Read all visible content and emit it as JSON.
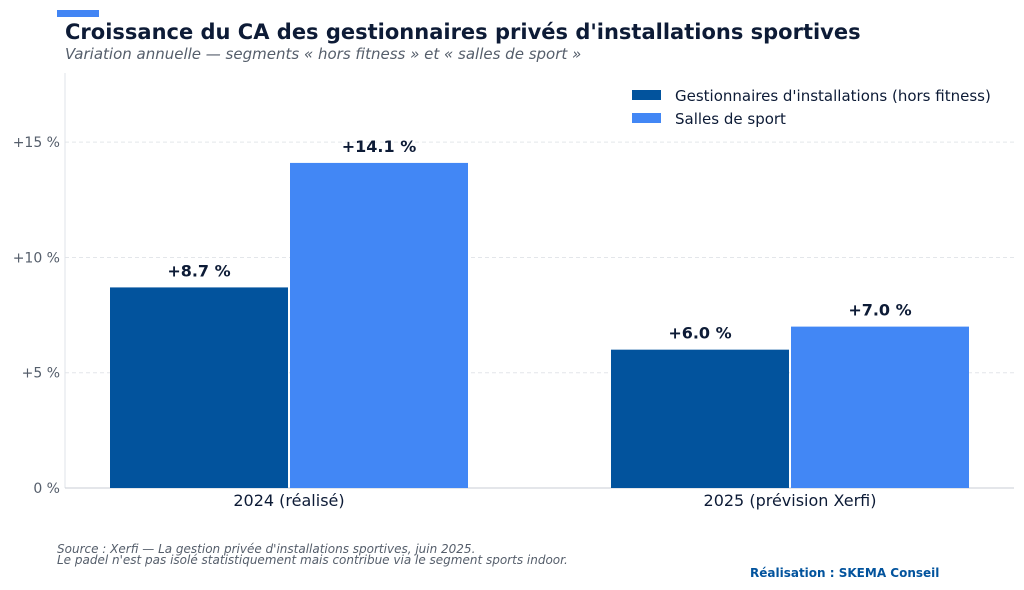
{
  "header": {
    "title": "Croissance du CA des gestionnaires privés d'installations sportives",
    "subtitle": "Variation annuelle — segments « hors fitness » et « salles de sport »"
  },
  "colors": {
    "accent": "#4285f4",
    "series_dark": "#02539d",
    "series_light": "#4287f5",
    "credit": "#02539d"
  },
  "chart_data": {
    "type": "bar",
    "categories": [
      "2024 (réalisé)",
      "2025 (prévision Xerfi)"
    ],
    "series": [
      {
        "name": "Gestionnaires d'installations (hors fitness)",
        "values": [
          8.7,
          6.0
        ],
        "labels": [
          "+8.7 %",
          "+6.0 %"
        ]
      },
      {
        "name": "Salles de sport",
        "values": [
          14.1,
          7.0
        ],
        "labels": [
          "+14.1 %",
          "+7.0 %"
        ]
      }
    ],
    "y_ticks": [
      0,
      5,
      10,
      15
    ],
    "y_tick_labels": [
      "0 %",
      "+5 %",
      "+10 %",
      "+15 %"
    ],
    "ylim": [
      0,
      18
    ],
    "grid": true,
    "legend_position": "top-right"
  },
  "footer": {
    "source": "Source : Xerfi — La gestion privée d'installations sportives, juin 2025.",
    "note": "Le padel n'est pas isolé statistiquement mais contribue via le segment sports indoor.",
    "credit": "Réalisation : SKEMA Conseil"
  }
}
